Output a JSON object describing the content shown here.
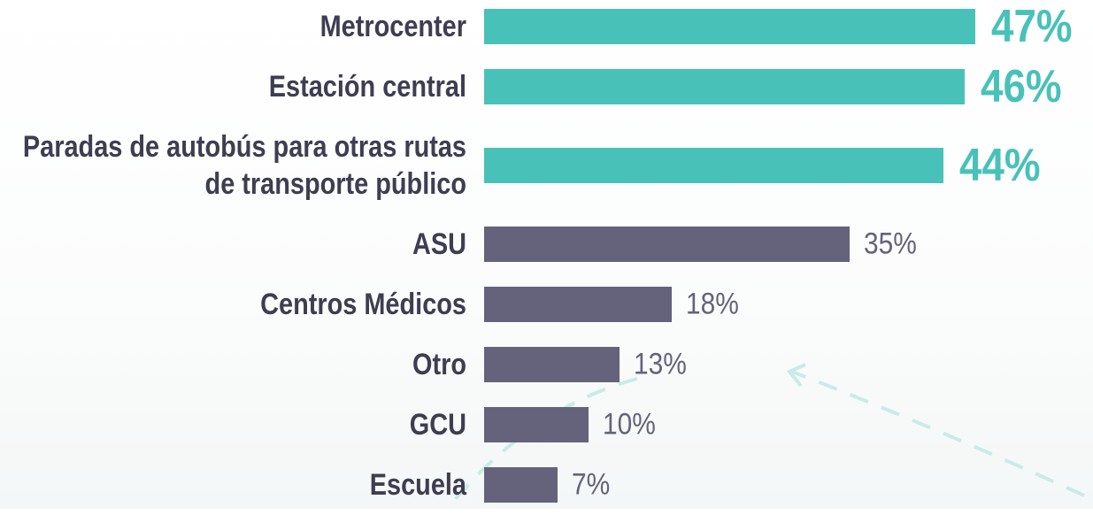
{
  "chart_data": {
    "type": "bar",
    "orientation": "horizontal",
    "categories": [
      "Metrocenter",
      "Estación central",
      "Paradas de autobús para otras rutas de transporte público",
      "ASU",
      "Centros Médicos",
      "Otro",
      "GCU",
      "Escuela"
    ],
    "values": [
      47,
      46,
      44,
      35,
      18,
      13,
      10,
      7
    ],
    "value_labels": [
      "47%",
      "46%",
      "44%",
      "35%",
      "18%",
      "13%",
      "10%",
      "7%"
    ],
    "colors": [
      "#48c2b9",
      "#48c2b9",
      "#48c2b9",
      "#64637b",
      "#64637b",
      "#64637b",
      "#64637b",
      "#64637b"
    ],
    "highlighted": [
      true,
      true,
      true,
      false,
      false,
      false,
      false,
      false
    ],
    "xlim": [
      0,
      50
    ]
  }
}
